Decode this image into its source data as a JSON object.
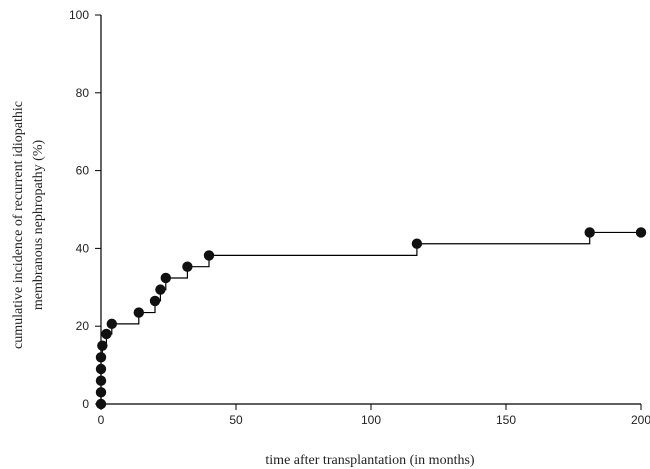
{
  "chart_data": {
    "type": "line",
    "step": true,
    "xlabel": "time after transplantation (in months)",
    "ylabel_lines": [
      "cumulative incidence of recurrent idiopathic",
      "membranous nephropathy (%)"
    ],
    "xlim": [
      0,
      200
    ],
    "ylim": [
      0,
      100
    ],
    "xticks": [
      0,
      50,
      100,
      150,
      200
    ],
    "yticks": [
      0,
      20,
      40,
      60,
      80,
      100
    ],
    "grid": false,
    "colors": {
      "line": "#000000",
      "marker": "#111111"
    },
    "points": [
      {
        "x": 0,
        "y": 0
      },
      {
        "x": 0,
        "y": 3
      },
      {
        "x": 0,
        "y": 6
      },
      {
        "x": 0,
        "y": 9
      },
      {
        "x": 0,
        "y": 12
      },
      {
        "x": 0.5,
        "y": 15
      },
      {
        "x": 2,
        "y": 18
      },
      {
        "x": 4,
        "y": 20.6
      },
      {
        "x": 14,
        "y": 23.5
      },
      {
        "x": 20,
        "y": 26.5
      },
      {
        "x": 22,
        "y": 29.4
      },
      {
        "x": 24,
        "y": 32.4
      },
      {
        "x": 32,
        "y": 35.3
      },
      {
        "x": 40,
        "y": 38.2
      },
      {
        "x": 117,
        "y": 41.2
      },
      {
        "x": 181,
        "y": 44.1
      },
      {
        "x": 200,
        "y": 44.1
      }
    ]
  }
}
